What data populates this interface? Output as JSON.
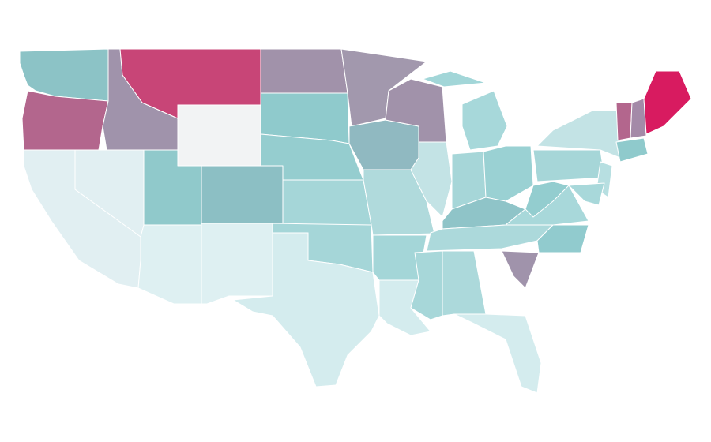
{
  "map": {
    "regions": [
      {
        "color": "#8cc3c6"
      },
      {
        "color": "#b3668d"
      },
      {
        "color": "#e1eff2"
      },
      {
        "color": "#e1eff2"
      },
      {
        "color": "#a093ab"
      },
      {
        "color": "#c84577"
      },
      {
        "color": "#f2f3f4"
      },
      {
        "color": "#90c9cb"
      },
      {
        "color": "#8cbfc4"
      },
      {
        "color": "#def0f2"
      },
      {
        "color": "#def0f2"
      },
      {
        "color": "#a192aa"
      },
      {
        "color": "#8fcacc"
      },
      {
        "color": "#95cdcf"
      },
      {
        "color": "#a5d6d8"
      },
      {
        "color": "#a5d6d8"
      },
      {
        "color": "#d4ecee"
      },
      {
        "color": "#a298ad"
      },
      {
        "color": "#90b9c1"
      },
      {
        "color": "#b0dadc"
      },
      {
        "color": "#a4d6d8"
      },
      {
        "color": "#d4ecee"
      },
      {
        "color": "#a192aa"
      },
      {
        "color": "#c3e3e5"
      },
      {
        "color": "#a7d8da"
      },
      {
        "color": "#a2d6d8"
      },
      {
        "color": "#a6d6d8"
      },
      {
        "color": "#9ad1d3"
      },
      {
        "color": "#8fc4c8"
      },
      {
        "color": "#acd9db"
      },
      {
        "color": "#a7d7d9"
      },
      {
        "color": "#acd9db"
      },
      {
        "color": "#d4ecee"
      },
      {
        "color": "#a093ab"
      },
      {
        "color": "#91cbce"
      },
      {
        "color": "#a8d8da"
      },
      {
        "color": "#93cdcf"
      },
      {
        "color": "#a6d6d8"
      },
      {
        "color": "#c3e3e5"
      },
      {
        "color": "#b7dfe1"
      },
      {
        "color": "#a8d8da"
      },
      {
        "color": "#8fcacc"
      },
      {
        "color": "#b3668d"
      },
      {
        "color": "#a48aa8"
      },
      {
        "color": "#d81b60"
      }
    ]
  }
}
